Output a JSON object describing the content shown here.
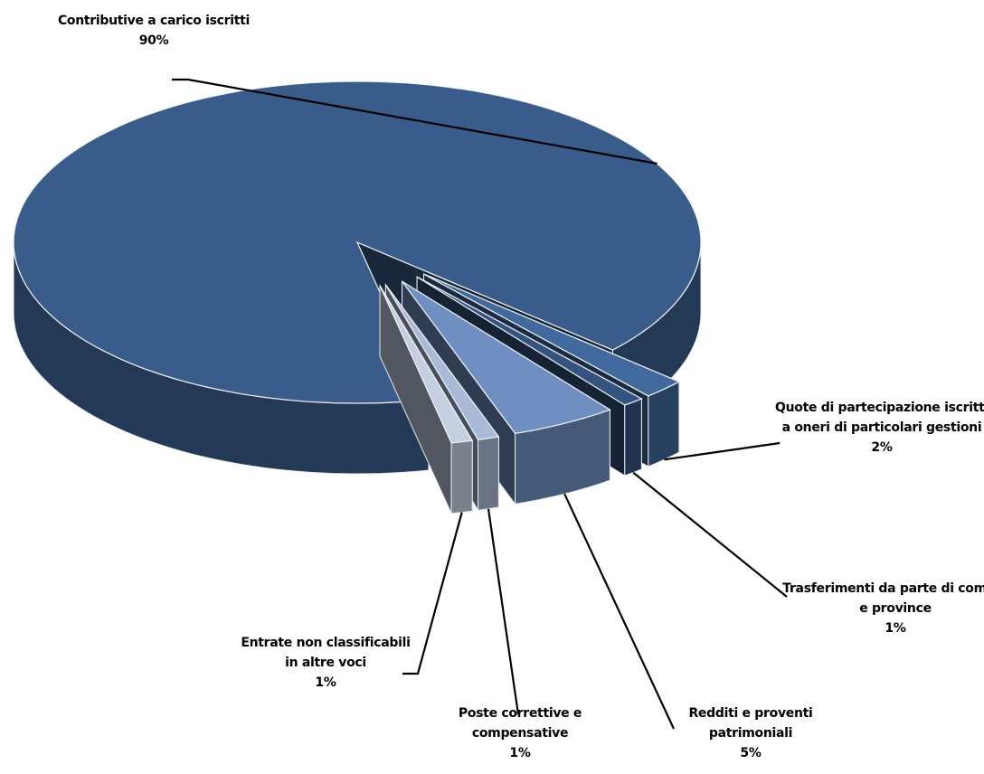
{
  "chart_data": {
    "type": "pie3d",
    "categories": [
      "Contributive a carico iscritti",
      "Quote di partecipazione iscritti a oneri di particolari gestioni",
      "Trasferimenti da parte di comuni e province",
      "Redditi e proventi patrimoniali",
      "Poste correttive e compensative",
      "Entrate non classificabili in altre voci"
    ],
    "values": [
      90,
      2,
      1,
      5,
      1,
      1
    ],
    "value_labels": [
      "90%",
      "2%",
      "1%",
      "5%",
      "1%",
      "1%"
    ],
    "colors": [
      "#3a5c8a",
      "#41699d",
      "#34547f",
      "#6f8fc3",
      "#a9bad6",
      "#c4cfe1"
    ]
  }
}
